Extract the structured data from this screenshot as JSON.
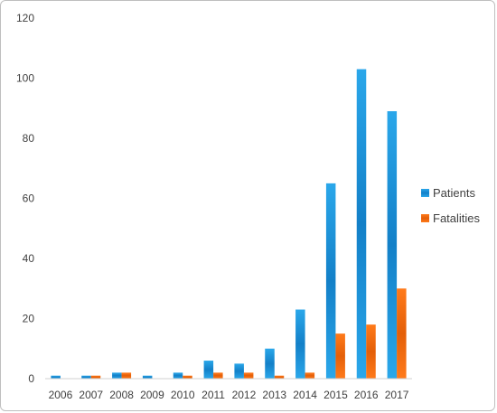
{
  "chart_data": {
    "type": "bar",
    "title": "",
    "xlabel": "",
    "ylabel": "",
    "categories": [
      "2006",
      "2007",
      "2008",
      "2009",
      "2010",
      "2011",
      "2012",
      "2013",
      "2014",
      "2015",
      "2016",
      "2017"
    ],
    "series": [
      {
        "name": "Patients",
        "color": "#1a8fd6",
        "values": [
          1,
          1,
          2,
          1,
          2,
          6,
          5,
          10,
          23,
          65,
          103,
          89
        ]
      },
      {
        "name": "Fatalities",
        "color": "#f2690f",
        "values": [
          0,
          1,
          2,
          0,
          1,
          2,
          2,
          1,
          2,
          15,
          18,
          30
        ]
      }
    ],
    "ylim": [
      0,
      120
    ],
    "yticks": [
      0,
      20,
      40,
      60,
      80,
      100,
      120
    ],
    "grid": false,
    "legend_position": "right"
  }
}
